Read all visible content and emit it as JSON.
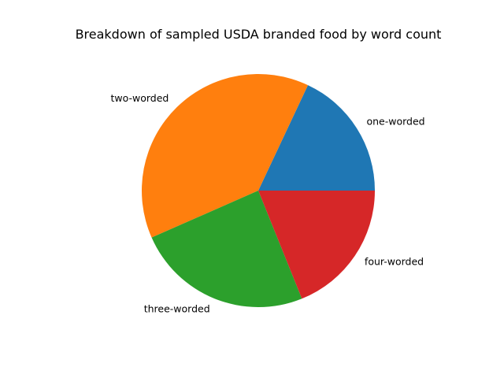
{
  "chart_data": {
    "type": "pie",
    "title": "Breakdown of sampled USDA branded food by word count",
    "labels": [
      "one-worded",
      "two-worded",
      "three-worded",
      "four-worded"
    ],
    "values": [
      18.0,
      38.6,
      24.5,
      18.9
    ],
    "colors": [
      "#1f77b4",
      "#ff7f0e",
      "#2ca02c",
      "#d62728"
    ],
    "start_angle_deg": 0,
    "direction": "counterclockwise"
  }
}
